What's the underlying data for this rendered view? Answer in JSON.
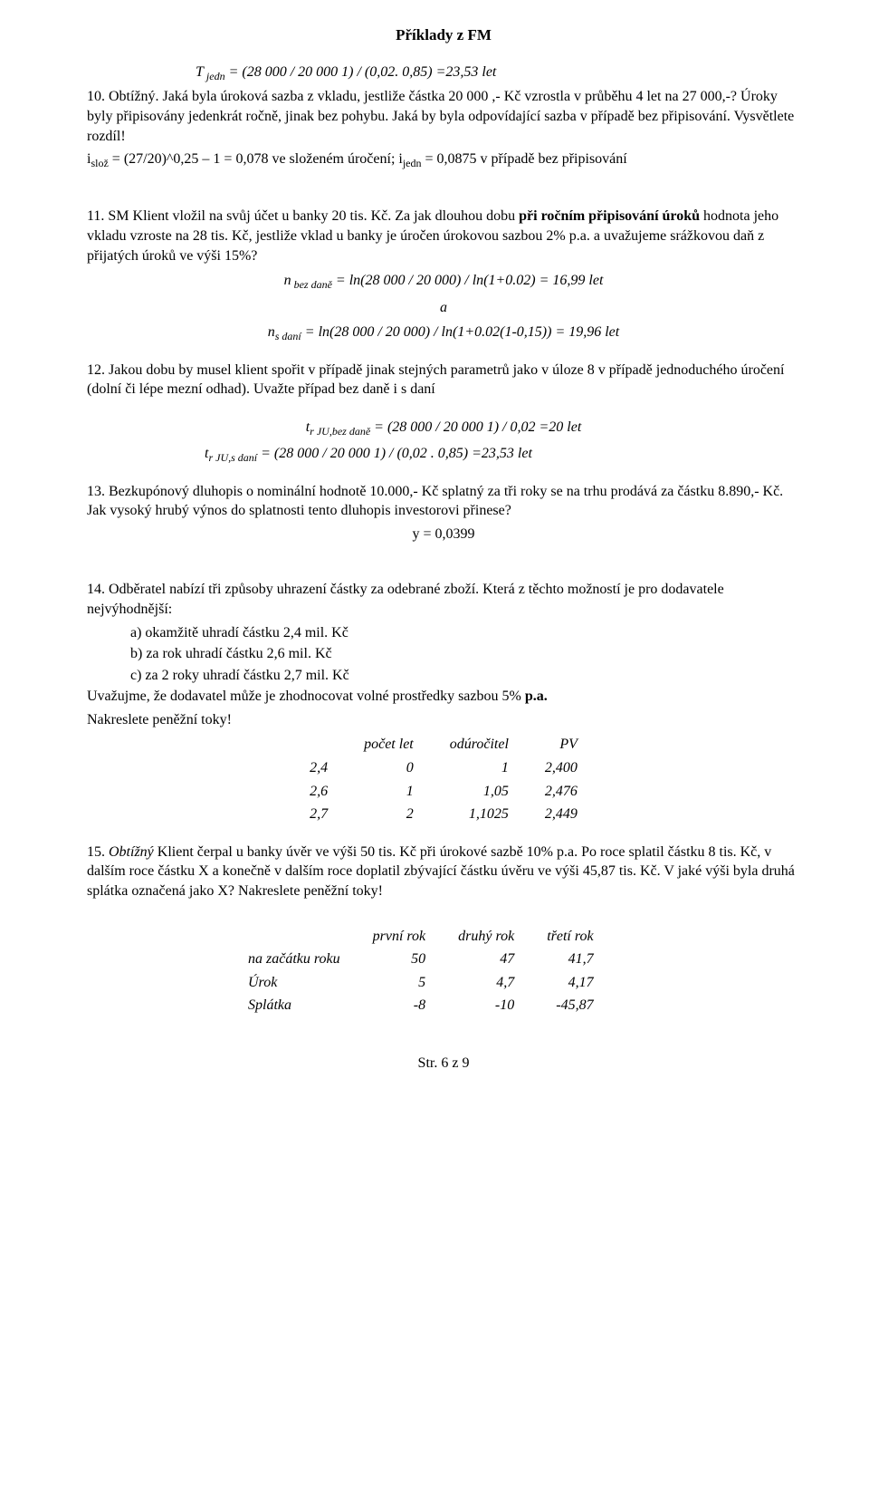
{
  "header": "Příklady z FM",
  "formula_top": "T <sub>jedn</sub> = (28 000 / 20 000 1) / (0,02. 0,85) =23,53 let",
  "p10_a": "10. Obtížný. Jaká byla úroková sazba z vkladu, jestliže částka 20 000 ,- Kč vzrostla v průběhu 4 let na 27 000,-? Úroky byly připisovány jedenkrát ročně, jinak bez pohybu. Jaká by byla odpovídající sazba v případě bez připisování. Vysvětlete rozdíl!",
  "p10_b": "i<sub>slož</sub> = (27/20)^0,25 – 1 = 0,078 ve složeném úročení;  i<sub>jedn</sub> = 0,0875 v případě bez připisování",
  "p11_a": "11. SM Klient vložil na svůj účet u banky 20 tis. Kč. Za jak dlouhou dobu ",
  "p11_b": "při ročním připisování úroků",
  "p11_c": " hodnota jeho vkladu vzroste na 28 tis. Kč, jestliže vklad u banky je úročen úrokovou sazbou 2% p.a. a uvažujeme srážkovou daň z přijatých úroků ve výši 15%?",
  "p11_f1_lhs": "n <sub>bez daně</sub> = ",
  "p11_f1_rhs": "ln(28 000 / 20 000) / ln(1+0.02) = 16,99 let",
  "p11_mid": "a",
  "p11_f2_lhs": "n<sub>s daní</sub> = ",
  "p11_f2_rhs": "ln(28 000 / 20 000) / ln(1+0.02(1-0,15)) = 19,96 let",
  "p12_a": "12. Jakou dobu by  musel klient spořit v případě jinak stejných parametrů jako v úloze 8 v případě jednoduchého úročení (dolní či lépe mezní odhad). Uvažte případ bez daně i s daní",
  "p12_f1": "t<sub>r JU,bez daně</sub> = (28 000 / 20 000 1) / 0,02 =20 let",
  "p12_f2": "t<sub>r JU,s daní</sub> = (28 000 / 20 000 1) / (0,02 . 0,85) =23,53 let",
  "p13_a": "13.  Bezkupónový dluhopis o nominální hodnotě 10.000,- Kč splatný za tři roky se na trhu prodává za částku 8.890,- Kč. Jak vysoký hrubý výnos do splatnosti tento dluhopis investorovi přinese?",
  "p13_f": "y = 0,0399",
  "p14_a": "14. Odběratel nabízí tři způsoby uhrazení částky za odebrané zboží. Která z těchto možností je pro dodavatele nejvýhodnější:",
  "p14_li_a": "a)  okamžitě uhradí částku 2,4 mil. Kč",
  "p14_li_b": "b)  za rok uhradí částku 2,6 mil. Kč",
  "p14_li_c": "c)  za 2 roky uhradí částku 2,7 mil. Kč",
  "p14_b": "Uvažujme, že dodavatel může je zhodnocovat volné prostředky sazbou 5% ",
  "p14_b_bold": "p.a.",
  "p14_c": "Nakreslete peněžní toky!",
  "pv_table": {
    "columns": [
      "počet let",
      "odúročitel",
      "PV"
    ],
    "rows": [
      {
        "label": "2,4",
        "cells": [
          "0",
          "1",
          "2,400"
        ]
      },
      {
        "label": "2,6",
        "cells": [
          "1",
          "1,05",
          "2,476"
        ]
      },
      {
        "label": "2,7",
        "cells": [
          "2",
          "1,1025",
          "2,449"
        ]
      }
    ]
  },
  "p15_lead": "15. ",
  "p15_italic": "Obtížný",
  "p15_a": " Klient čerpal u banky úvěr ve výši 50 tis. Kč při úrokové sazbě 10% p.a. Po roce splatil částku 8 tis. Kč, v dalším roce částku X a konečně v dalším roce doplatil zbývající částku úvěru ve výši 45,87 tis. Kč. V jaké výši byla druhá splátka označená jako X? Nakreslete peněžní toky!",
  "yr_table": {
    "columns": [
      "první rok",
      "druhý rok",
      "třetí rok"
    ],
    "rows": [
      {
        "label": "na začátku roku",
        "cells": [
          "50",
          "47",
          "41,7"
        ]
      },
      {
        "label": "Úrok",
        "cells": [
          "5",
          "4,7",
          "4,17"
        ]
      },
      {
        "label": "Splátka",
        "cells": [
          "-8",
          "-10",
          "-45,87"
        ]
      }
    ]
  },
  "footer": "Str. 6 z 9"
}
